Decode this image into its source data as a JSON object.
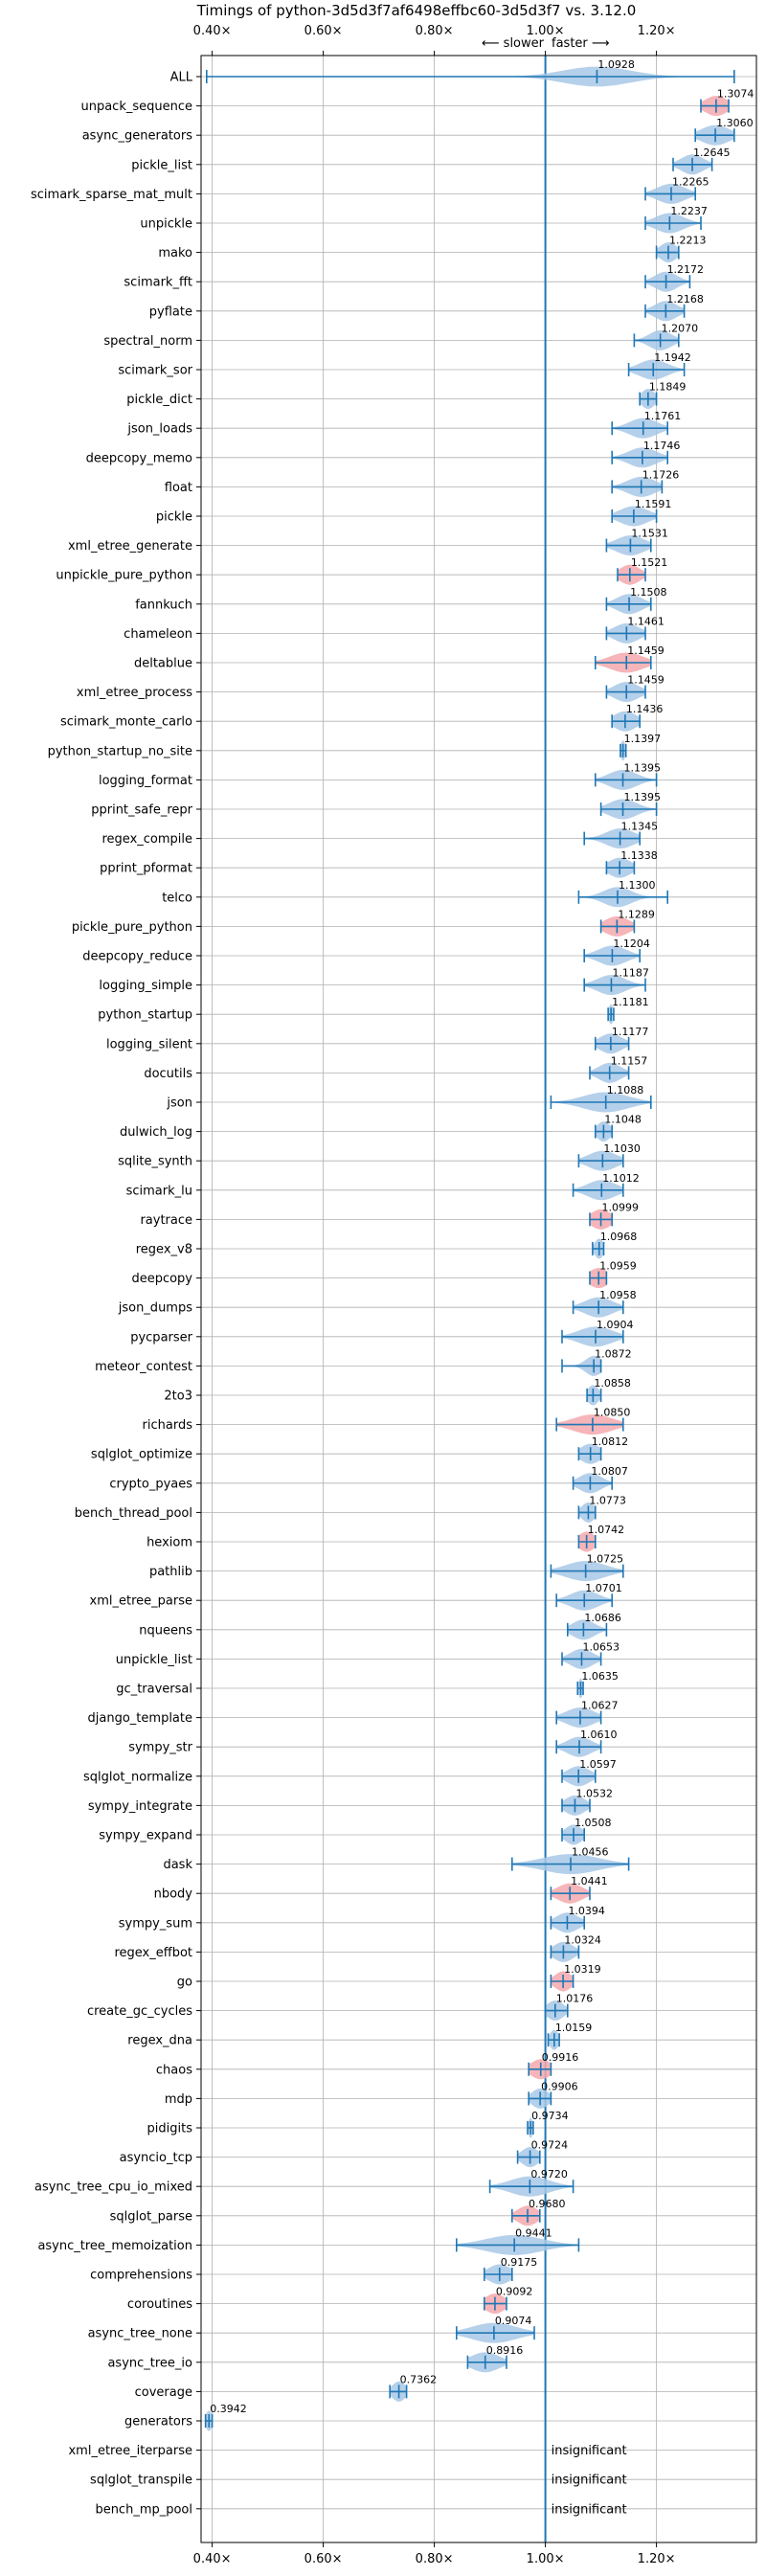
{
  "chart_data": {
    "type": "violin",
    "title": "Timings of python-3d5d3f7af6498effbc60-3d5d3f7 vs. 3.12.0",
    "slower_label": "⟵ slower",
    "faster_label": "faster ⟶",
    "xlim": [
      0.38,
      1.38
    ],
    "xticks": [
      0.4,
      0.6,
      0.8,
      1.0,
      1.2
    ],
    "xtick_labels": [
      "0.40×",
      "0.60×",
      "0.80×",
      "1.00×",
      "1.20×"
    ],
    "reference_line": 1.0,
    "grid": true,
    "colors": {
      "normal": "#a8c8e6",
      "highlight": "#f4a8ad",
      "line": "#1f77b4"
    },
    "insignificant_label": "insignificant",
    "benchmarks": [
      {
        "name": "ALL",
        "value": 1.0928,
        "value_label": "1.0928",
        "min": 0.39,
        "max": 1.34,
        "spread": 0.06,
        "highlight": false
      },
      {
        "name": "unpack_sequence",
        "value": 1.3074,
        "value_label": "1.3074",
        "min": 1.28,
        "max": 1.33,
        "spread": 0.02,
        "highlight": true
      },
      {
        "name": "async_generators",
        "value": 1.306,
        "value_label": "1.3060",
        "min": 1.27,
        "max": 1.34,
        "spread": 0.025,
        "highlight": false
      },
      {
        "name": "pickle_list",
        "value": 1.2645,
        "value_label": "1.2645",
        "min": 1.23,
        "max": 1.3,
        "spread": 0.02,
        "highlight": false
      },
      {
        "name": "scimark_sparse_mat_mult",
        "value": 1.2265,
        "value_label": "1.2265",
        "min": 1.18,
        "max": 1.27,
        "spread": 0.025,
        "highlight": false
      },
      {
        "name": "unpickle",
        "value": 1.2237,
        "value_label": "1.2237",
        "min": 1.18,
        "max": 1.28,
        "spread": 0.025,
        "highlight": false
      },
      {
        "name": "mako",
        "value": 1.2213,
        "value_label": "1.2213",
        "min": 1.2,
        "max": 1.24,
        "spread": 0.015,
        "highlight": false
      },
      {
        "name": "scimark_fft",
        "value": 1.2172,
        "value_label": "1.2172",
        "min": 1.18,
        "max": 1.26,
        "spread": 0.02,
        "highlight": false
      },
      {
        "name": "pyflate",
        "value": 1.2168,
        "value_label": "1.2168",
        "min": 1.18,
        "max": 1.25,
        "spread": 0.02,
        "highlight": false
      },
      {
        "name": "spectral_norm",
        "value": 1.207,
        "value_label": "1.2070",
        "min": 1.16,
        "max": 1.24,
        "spread": 0.02,
        "highlight": false
      },
      {
        "name": "scimark_sor",
        "value": 1.1942,
        "value_label": "1.1942",
        "min": 1.15,
        "max": 1.25,
        "spread": 0.025,
        "highlight": false
      },
      {
        "name": "pickle_dict",
        "value": 1.1849,
        "value_label": "1.1849",
        "min": 1.17,
        "max": 1.2,
        "spread": 0.012,
        "highlight": false
      },
      {
        "name": "json_loads",
        "value": 1.1761,
        "value_label": "1.1761",
        "min": 1.12,
        "max": 1.22,
        "spread": 0.025,
        "highlight": false
      },
      {
        "name": "deepcopy_memo",
        "value": 1.1746,
        "value_label": "1.1746",
        "min": 1.12,
        "max": 1.22,
        "spread": 0.025,
        "highlight": false
      },
      {
        "name": "float",
        "value": 1.1726,
        "value_label": "1.1726",
        "min": 1.12,
        "max": 1.21,
        "spread": 0.025,
        "highlight": false
      },
      {
        "name": "pickle",
        "value": 1.1591,
        "value_label": "1.1591",
        "min": 1.12,
        "max": 1.2,
        "spread": 0.025,
        "highlight": false
      },
      {
        "name": "xml_etree_generate",
        "value": 1.1531,
        "value_label": "1.1531",
        "min": 1.11,
        "max": 1.19,
        "spread": 0.025,
        "highlight": false
      },
      {
        "name": "unpickle_pure_python",
        "value": 1.1521,
        "value_label": "1.1521",
        "min": 1.13,
        "max": 1.18,
        "spread": 0.018,
        "highlight": true
      },
      {
        "name": "fannkuch",
        "value": 1.1508,
        "value_label": "1.1508",
        "min": 1.11,
        "max": 1.19,
        "spread": 0.022,
        "highlight": false
      },
      {
        "name": "chameleon",
        "value": 1.1461,
        "value_label": "1.1461",
        "min": 1.11,
        "max": 1.18,
        "spread": 0.022,
        "highlight": false
      },
      {
        "name": "deltablue",
        "value": 1.1459,
        "value_label": "1.1459",
        "min": 1.09,
        "max": 1.19,
        "spread": 0.03,
        "highlight": true
      },
      {
        "name": "xml_etree_process",
        "value": 1.1459,
        "value_label": "1.1459",
        "min": 1.11,
        "max": 1.18,
        "spread": 0.022,
        "highlight": false
      },
      {
        "name": "scimark_monte_carlo",
        "value": 1.1436,
        "value_label": "1.1436",
        "min": 1.12,
        "max": 1.17,
        "spread": 0.02,
        "highlight": false
      },
      {
        "name": "python_startup_no_site",
        "value": 1.1397,
        "value_label": "1.1397",
        "min": 1.135,
        "max": 1.145,
        "spread": 0.004,
        "highlight": false
      },
      {
        "name": "logging_format",
        "value": 1.1395,
        "value_label": "1.1395",
        "min": 1.09,
        "max": 1.2,
        "spread": 0.025,
        "highlight": false
      },
      {
        "name": "pprint_safe_repr",
        "value": 1.1395,
        "value_label": "1.1395",
        "min": 1.1,
        "max": 1.2,
        "spread": 0.025,
        "highlight": false
      },
      {
        "name": "regex_compile",
        "value": 1.1345,
        "value_label": "1.1345",
        "min": 1.07,
        "max": 1.17,
        "spread": 0.025,
        "highlight": false
      },
      {
        "name": "pprint_pformat",
        "value": 1.1338,
        "value_label": "1.1338",
        "min": 1.11,
        "max": 1.16,
        "spread": 0.02,
        "highlight": false
      },
      {
        "name": "telco",
        "value": 1.13,
        "value_label": "1.1300",
        "min": 1.06,
        "max": 1.22,
        "spread": 0.025,
        "highlight": false
      },
      {
        "name": "pickle_pure_python",
        "value": 1.1289,
        "value_label": "1.1289",
        "min": 1.1,
        "max": 1.16,
        "spread": 0.022,
        "highlight": true
      },
      {
        "name": "deepcopy_reduce",
        "value": 1.1204,
        "value_label": "1.1204",
        "min": 1.07,
        "max": 1.17,
        "spread": 0.025,
        "highlight": false
      },
      {
        "name": "logging_simple",
        "value": 1.1187,
        "value_label": "1.1187",
        "min": 1.07,
        "max": 1.18,
        "spread": 0.025,
        "highlight": false
      },
      {
        "name": "python_startup",
        "value": 1.1181,
        "value_label": "1.1181",
        "min": 1.113,
        "max": 1.123,
        "spread": 0.004,
        "highlight": false
      },
      {
        "name": "logging_silent",
        "value": 1.1177,
        "value_label": "1.1177",
        "min": 1.09,
        "max": 1.15,
        "spread": 0.02,
        "highlight": false
      },
      {
        "name": "docutils",
        "value": 1.1157,
        "value_label": "1.1157",
        "min": 1.08,
        "max": 1.15,
        "spread": 0.02,
        "highlight": false
      },
      {
        "name": "json",
        "value": 1.1088,
        "value_label": "1.1088",
        "min": 1.01,
        "max": 1.19,
        "spread": 0.04,
        "highlight": false
      },
      {
        "name": "dulwich_log",
        "value": 1.1048,
        "value_label": "1.1048",
        "min": 1.09,
        "max": 1.12,
        "spread": 0.012,
        "highlight": false
      },
      {
        "name": "sqlite_synth",
        "value": 1.103,
        "value_label": "1.1030",
        "min": 1.06,
        "max": 1.14,
        "spread": 0.025,
        "highlight": false
      },
      {
        "name": "scimark_lu",
        "value": 1.1012,
        "value_label": "1.1012",
        "min": 1.05,
        "max": 1.14,
        "spread": 0.025,
        "highlight": false
      },
      {
        "name": "raytrace",
        "value": 1.0999,
        "value_label": "1.0999",
        "min": 1.08,
        "max": 1.12,
        "spread": 0.018,
        "highlight": true
      },
      {
        "name": "regex_v8",
        "value": 1.0968,
        "value_label": "1.0968",
        "min": 1.085,
        "max": 1.105,
        "spread": 0.008,
        "highlight": false
      },
      {
        "name": "deepcopy",
        "value": 1.0959,
        "value_label": "1.0959",
        "min": 1.08,
        "max": 1.11,
        "spread": 0.018,
        "highlight": true
      },
      {
        "name": "json_dumps",
        "value": 1.0958,
        "value_label": "1.0958",
        "min": 1.05,
        "max": 1.14,
        "spread": 0.025,
        "highlight": false
      },
      {
        "name": "pycparser",
        "value": 1.0904,
        "value_label": "1.0904",
        "min": 1.03,
        "max": 1.14,
        "spread": 0.03,
        "highlight": false
      },
      {
        "name": "meteor_contest",
        "value": 1.0872,
        "value_label": "1.0872",
        "min": 1.03,
        "max": 1.1,
        "spread": 0.015,
        "highlight": false
      },
      {
        "name": "2to3",
        "value": 1.0858,
        "value_label": "1.0858",
        "min": 1.075,
        "max": 1.1,
        "spread": 0.01,
        "highlight": false
      },
      {
        "name": "richards",
        "value": 1.085,
        "value_label": "1.0850",
        "min": 1.02,
        "max": 1.14,
        "spread": 0.035,
        "highlight": true
      },
      {
        "name": "sqlglot_optimize",
        "value": 1.0812,
        "value_label": "1.0812",
        "min": 1.06,
        "max": 1.1,
        "spread": 0.018,
        "highlight": false
      },
      {
        "name": "crypto_pyaes",
        "value": 1.0807,
        "value_label": "1.0807",
        "min": 1.05,
        "max": 1.12,
        "spread": 0.02,
        "highlight": false
      },
      {
        "name": "bench_thread_pool",
        "value": 1.0773,
        "value_label": "1.0773",
        "min": 1.06,
        "max": 1.09,
        "spread": 0.012,
        "highlight": false
      },
      {
        "name": "hexiom",
        "value": 1.0742,
        "value_label": "1.0742",
        "min": 1.06,
        "max": 1.09,
        "spread": 0.015,
        "highlight": true
      },
      {
        "name": "pathlib",
        "value": 1.0725,
        "value_label": "1.0725",
        "min": 1.01,
        "max": 1.14,
        "spread": 0.035,
        "highlight": false
      },
      {
        "name": "xml_etree_parse",
        "value": 1.0701,
        "value_label": "1.0701",
        "min": 1.02,
        "max": 1.12,
        "spread": 0.025,
        "highlight": false
      },
      {
        "name": "nqueens",
        "value": 1.0686,
        "value_label": "1.0686",
        "min": 1.04,
        "max": 1.11,
        "spread": 0.02,
        "highlight": false
      },
      {
        "name": "unpickle_list",
        "value": 1.0653,
        "value_label": "1.0653",
        "min": 1.03,
        "max": 1.1,
        "spread": 0.02,
        "highlight": false
      },
      {
        "name": "gc_traversal",
        "value": 1.0635,
        "value_label": "1.0635",
        "min": 1.058,
        "max": 1.068,
        "spread": 0.004,
        "highlight": false
      },
      {
        "name": "django_template",
        "value": 1.0627,
        "value_label": "1.0627",
        "min": 1.02,
        "max": 1.1,
        "spread": 0.025,
        "highlight": false
      },
      {
        "name": "sympy_str",
        "value": 1.061,
        "value_label": "1.0610",
        "min": 1.02,
        "max": 1.1,
        "spread": 0.022,
        "highlight": false
      },
      {
        "name": "sqlglot_normalize",
        "value": 1.0597,
        "value_label": "1.0597",
        "min": 1.03,
        "max": 1.09,
        "spread": 0.02,
        "highlight": false
      },
      {
        "name": "sympy_integrate",
        "value": 1.0532,
        "value_label": "1.0532",
        "min": 1.03,
        "max": 1.08,
        "spread": 0.018,
        "highlight": false
      },
      {
        "name": "sympy_expand",
        "value": 1.0508,
        "value_label": "1.0508",
        "min": 1.03,
        "max": 1.07,
        "spread": 0.015,
        "highlight": false
      },
      {
        "name": "dask",
        "value": 1.0456,
        "value_label": "1.0456",
        "min": 0.94,
        "max": 1.15,
        "spread": 0.05,
        "highlight": false
      },
      {
        "name": "nbody",
        "value": 1.0441,
        "value_label": "1.0441",
        "min": 1.01,
        "max": 1.08,
        "spread": 0.022,
        "highlight": true
      },
      {
        "name": "sympy_sum",
        "value": 1.0394,
        "value_label": "1.0394",
        "min": 1.01,
        "max": 1.07,
        "spread": 0.02,
        "highlight": false
      },
      {
        "name": "regex_effbot",
        "value": 1.0324,
        "value_label": "1.0324",
        "min": 1.01,
        "max": 1.06,
        "spread": 0.018,
        "highlight": false
      },
      {
        "name": "go",
        "value": 1.0319,
        "value_label": "1.0319",
        "min": 1.01,
        "max": 1.05,
        "spread": 0.015,
        "highlight": true
      },
      {
        "name": "create_gc_cycles",
        "value": 1.0176,
        "value_label": "1.0176",
        "min": 1.0,
        "max": 1.04,
        "spread": 0.015,
        "highlight": false
      },
      {
        "name": "regex_dna",
        "value": 1.0159,
        "value_label": "1.0159",
        "min": 1.005,
        "max": 1.025,
        "spread": 0.008,
        "highlight": false
      },
      {
        "name": "chaos",
        "value": 0.9916,
        "value_label": "0.9916",
        "min": 0.97,
        "max": 1.01,
        "spread": 0.018,
        "highlight": true
      },
      {
        "name": "mdp",
        "value": 0.9906,
        "value_label": "0.9906",
        "min": 0.97,
        "max": 1.01,
        "spread": 0.015,
        "highlight": false
      },
      {
        "name": "pidigits",
        "value": 0.9734,
        "value_label": "0.9734",
        "min": 0.968,
        "max": 0.978,
        "spread": 0.004,
        "highlight": false
      },
      {
        "name": "asyncio_tcp",
        "value": 0.9724,
        "value_label": "0.9724",
        "min": 0.95,
        "max": 0.99,
        "spread": 0.015,
        "highlight": false
      },
      {
        "name": "async_tree_cpu_io_mixed",
        "value": 0.972,
        "value_label": "0.9720",
        "min": 0.9,
        "max": 1.05,
        "spread": 0.035,
        "highlight": false
      },
      {
        "name": "sqlglot_parse",
        "value": 0.968,
        "value_label": "0.9680",
        "min": 0.94,
        "max": 0.99,
        "spread": 0.018,
        "highlight": true
      },
      {
        "name": "async_tree_memoization",
        "value": 0.9441,
        "value_label": "0.9441",
        "min": 0.84,
        "max": 1.06,
        "spread": 0.05,
        "highlight": false
      },
      {
        "name": "comprehensions",
        "value": 0.9175,
        "value_label": "0.9175",
        "min": 0.89,
        "max": 0.94,
        "spread": 0.02,
        "highlight": false
      },
      {
        "name": "coroutines",
        "value": 0.9092,
        "value_label": "0.9092",
        "min": 0.89,
        "max": 0.93,
        "spread": 0.018,
        "highlight": true
      },
      {
        "name": "async_tree_none",
        "value": 0.9074,
        "value_label": "0.9074",
        "min": 0.84,
        "max": 0.98,
        "spread": 0.04,
        "highlight": false
      },
      {
        "name": "async_tree_io",
        "value": 0.8916,
        "value_label": "0.8916",
        "min": 0.86,
        "max": 0.93,
        "spread": 0.025,
        "highlight": false
      },
      {
        "name": "coverage",
        "value": 0.7362,
        "value_label": "0.7362",
        "min": 0.72,
        "max": 0.75,
        "spread": 0.012,
        "highlight": false
      },
      {
        "name": "generators",
        "value": 0.3942,
        "value_label": "0.3942",
        "min": 0.388,
        "max": 0.4,
        "spread": 0.006,
        "highlight": false
      },
      {
        "name": "xml_etree_iterparse",
        "value": null,
        "value_label": "",
        "min": null,
        "max": null,
        "spread": 0,
        "highlight": false
      },
      {
        "name": "sqlglot_transpile",
        "value": null,
        "value_label": "",
        "min": null,
        "max": null,
        "spread": 0,
        "highlight": false
      },
      {
        "name": "bench_mp_pool",
        "value": null,
        "value_label": "",
        "min": null,
        "max": null,
        "spread": 0,
        "highlight": false
      }
    ]
  }
}
